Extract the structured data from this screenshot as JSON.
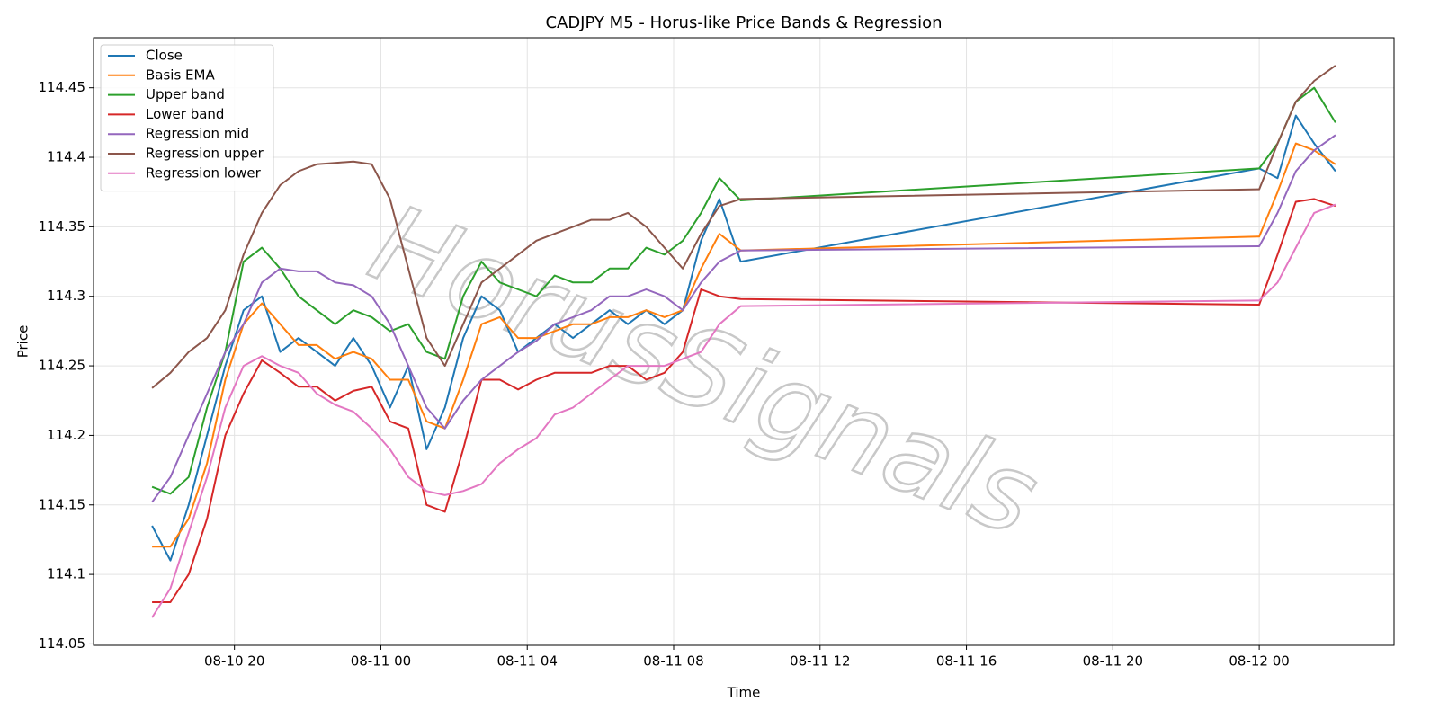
{
  "chart_data": {
    "type": "line",
    "title": "CADJPY M5 - Horus-like Price Bands & Regression",
    "x_label": "Time",
    "y_label": "Price",
    "watermark": "HorusSignals",
    "grid": true,
    "legend": "upper left",
    "xlim": [
      "08-10 16:09",
      "08-12 03:41"
    ],
    "xticks": [
      "08-10 20",
      "08-11 00",
      "08-11 04",
      "08-11 08",
      "08-11 12",
      "08-11 16",
      "08-11 20",
      "08-12 00"
    ],
    "ylim": [
      114.049,
      114.486
    ],
    "yticks": [
      114.05,
      114.1,
      114.15,
      114.2,
      114.25,
      114.3,
      114.35,
      114.4,
      114.45
    ],
    "x": [
      "08-10 17:45",
      "08-10 18:15",
      "08-10 18:45",
      "08-10 19:15",
      "08-10 19:45",
      "08-10 20:15",
      "08-10 20:45",
      "08-10 21:15",
      "08-10 21:45",
      "08-10 22:15",
      "08-10 22:45",
      "08-10 23:15",
      "08-10 23:45",
      "08-11 00:15",
      "08-11 00:45",
      "08-11 01:15",
      "08-11 01:45",
      "08-11 02:15",
      "08-11 02:45",
      "08-11 03:15",
      "08-11 03:45",
      "08-11 04:15",
      "08-11 04:45",
      "08-11 05:15",
      "08-11 05:45",
      "08-11 06:15",
      "08-11 06:45",
      "08-11 07:15",
      "08-11 07:45",
      "08-11 08:15",
      "08-11 08:45",
      "08-11 09:15",
      "08-11 09:50",
      "08-12 00:00",
      "08-12 00:30",
      "08-12 01:00",
      "08-12 01:30",
      "08-12 02:05"
    ],
    "series": [
      {
        "name": "Close",
        "color": "#1f77b4",
        "values": [
          114.135,
          114.11,
          114.15,
          114.2,
          114.25,
          114.29,
          114.3,
          114.26,
          114.27,
          114.26,
          114.25,
          114.27,
          114.25,
          114.22,
          114.25,
          114.19,
          114.22,
          114.27,
          114.3,
          114.29,
          114.26,
          114.27,
          114.28,
          114.27,
          114.28,
          114.29,
          114.28,
          114.29,
          114.28,
          114.29,
          114.34,
          114.37,
          114.325,
          114.392,
          114.385,
          114.43,
          114.41,
          114.39
        ]
      },
      {
        "name": "Basis EMA",
        "color": "#ff7f0e",
        "values": [
          114.12,
          114.12,
          114.14,
          114.18,
          114.24,
          114.28,
          114.295,
          114.28,
          114.265,
          114.265,
          114.255,
          114.26,
          114.255,
          114.24,
          114.24,
          114.21,
          114.205,
          114.24,
          114.28,
          114.285,
          114.27,
          114.27,
          114.275,
          114.28,
          114.28,
          114.285,
          114.285,
          114.29,
          114.285,
          114.29,
          114.32,
          114.345,
          114.333,
          114.343,
          114.375,
          114.41,
          114.405,
          114.395
        ]
      },
      {
        "name": "Upper band",
        "color": "#2ca02c",
        "values": [
          114.163,
          114.158,
          114.17,
          114.22,
          114.26,
          114.325,
          114.335,
          114.32,
          114.3,
          114.29,
          114.28,
          114.29,
          114.285,
          114.275,
          114.28,
          114.26,
          114.255,
          114.3,
          114.325,
          114.31,
          114.305,
          114.3,
          114.315,
          114.31,
          114.31,
          114.32,
          114.32,
          114.335,
          114.33,
          114.34,
          114.36,
          114.385,
          114.369,
          114.392,
          114.41,
          114.44,
          114.45,
          114.425
        ]
      },
      {
        "name": "Lower band",
        "color": "#d62728",
        "values": [
          114.08,
          114.08,
          114.1,
          114.14,
          114.2,
          114.23,
          114.254,
          114.245,
          114.235,
          114.235,
          114.225,
          114.232,
          114.235,
          114.21,
          114.205,
          114.15,
          114.145,
          114.19,
          114.24,
          114.24,
          114.233,
          114.24,
          114.245,
          114.245,
          114.245,
          114.25,
          114.25,
          114.24,
          114.245,
          114.26,
          114.305,
          114.3,
          114.298,
          114.294,
          114.33,
          114.368,
          114.37,
          114.365
        ]
      },
      {
        "name": "Regression mid",
        "color": "#9467bd",
        "values": [
          114.152,
          114.17,
          114.2,
          114.23,
          114.26,
          114.28,
          114.31,
          114.32,
          114.318,
          114.318,
          114.31,
          114.308,
          114.3,
          114.28,
          114.25,
          114.22,
          114.205,
          114.225,
          114.24,
          114.25,
          114.26,
          114.268,
          114.28,
          114.285,
          114.29,
          114.3,
          114.3,
          114.305,
          114.3,
          114.29,
          114.31,
          114.325,
          114.333,
          114.336,
          114.36,
          114.39,
          114.405,
          114.416
        ]
      },
      {
        "name": "Regression upper",
        "color": "#8c564b",
        "values": [
          114.234,
          114.245,
          114.26,
          114.27,
          114.29,
          114.33,
          114.36,
          114.38,
          114.39,
          114.395,
          114.396,
          114.397,
          114.395,
          114.37,
          114.32,
          114.27,
          114.25,
          114.28,
          114.31,
          114.32,
          114.33,
          114.34,
          114.345,
          114.35,
          114.355,
          114.355,
          114.36,
          114.35,
          114.335,
          114.32,
          114.345,
          114.365,
          114.37,
          114.377,
          114.41,
          114.44,
          114.455,
          114.466
        ]
      },
      {
        "name": "Regression lower",
        "color": "#e377c2",
        "values": [
          114.069,
          114.09,
          114.13,
          114.17,
          114.22,
          114.25,
          114.257,
          114.25,
          114.245,
          114.23,
          114.222,
          114.217,
          114.205,
          114.19,
          114.17,
          114.16,
          114.157,
          114.16,
          114.165,
          114.18,
          114.19,
          114.198,
          114.215,
          114.22,
          114.23,
          114.24,
          114.25,
          114.25,
          114.25,
          114.255,
          114.26,
          114.28,
          114.293,
          114.297,
          114.31,
          114.335,
          114.36,
          114.366
        ]
      }
    ]
  }
}
